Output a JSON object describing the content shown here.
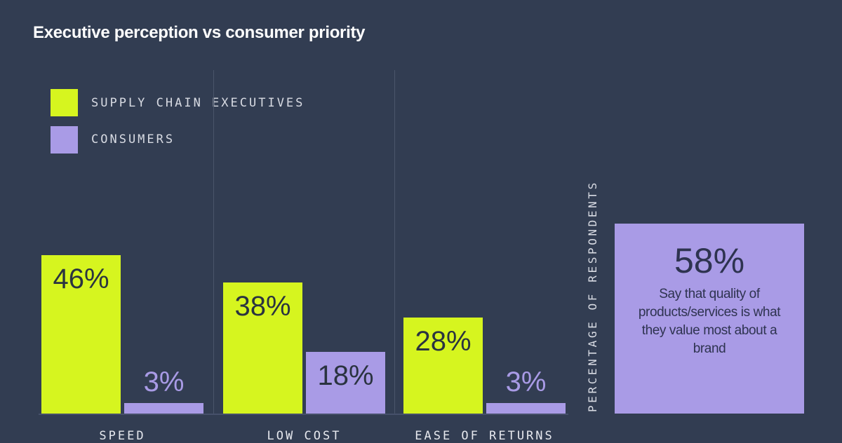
{
  "chart_data": {
    "type": "bar",
    "title": "Executive perception vs consumer priority",
    "ylabel": "PERCENTAGE OF RESPONDENTS",
    "categories": [
      "SPEED",
      "LOW COST",
      "EASE OF RETURNS"
    ],
    "series": [
      {
        "name": "SUPPLY CHAIN EXECUTIVES",
        "values": [
          46,
          38,
          28
        ],
        "labels": [
          "46%",
          "38%",
          "28%"
        ],
        "color": "#d6f51f"
      },
      {
        "name": "CONSUMERS",
        "values": [
          3,
          18,
          3
        ],
        "labels": [
          "3%",
          "18%",
          "3%"
        ],
        "color": "#a99be6"
      }
    ],
    "legend_position": "top-left",
    "grid": false,
    "callout": {
      "value": 58,
      "label": "58%",
      "text": "Say that quality of products/services is what they value most about a brand",
      "color": "#a99be6"
    }
  },
  "colors": {
    "background": "#323d52",
    "text_dark": "#2a3340"
  }
}
